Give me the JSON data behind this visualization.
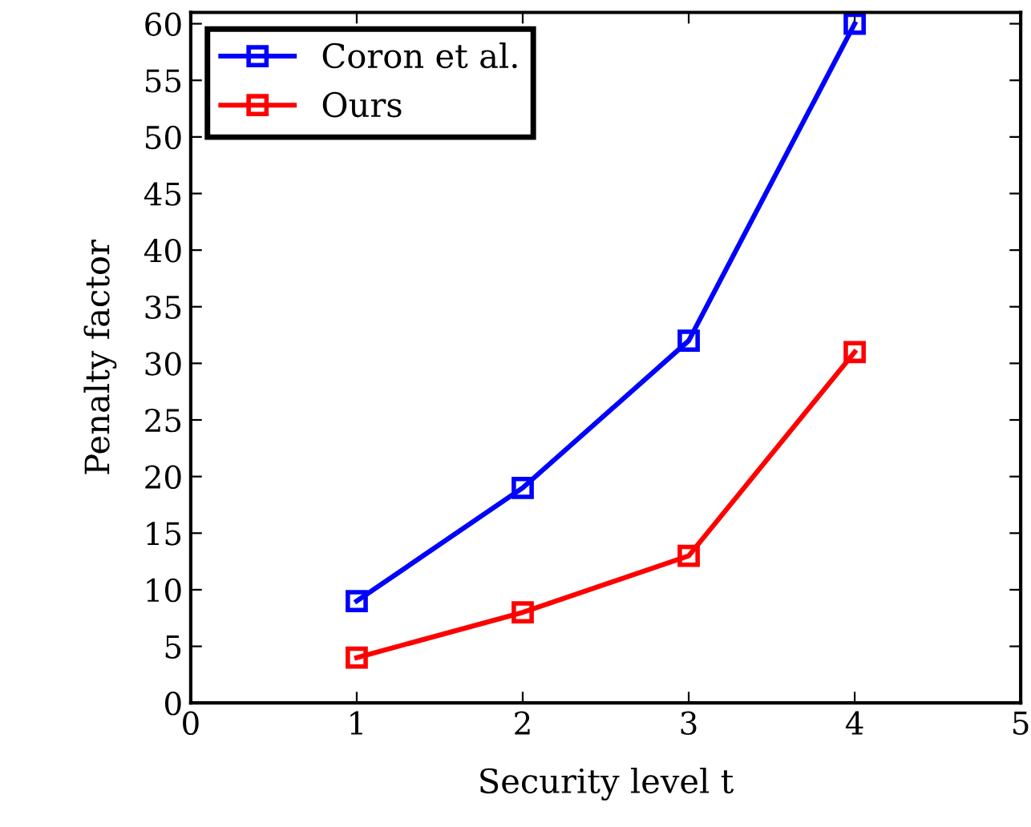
{
  "chart_data": {
    "type": "line",
    "xlabel": "Security level t",
    "ylabel": "Penalty factor",
    "x": [
      1,
      2,
      3,
      4
    ],
    "series": [
      {
        "name": "Coron et al.",
        "color": "#0000ff",
        "values": [
          9,
          19,
          32,
          60
        ]
      },
      {
        "name": "Ours",
        "color": "#ff0000",
        "values": [
          4,
          8,
          13,
          31
        ]
      }
    ],
    "xlim": [
      0,
      5
    ],
    "xticks": [
      0,
      1,
      2,
      3,
      4,
      5
    ],
    "ylim": [
      0,
      61
    ],
    "yticks": [
      0,
      5,
      10,
      15,
      20,
      25,
      30,
      35,
      40,
      45,
      50,
      55,
      60
    ],
    "grid": false,
    "legend": "top left",
    "marker": "square",
    "line_style": "solid"
  }
}
